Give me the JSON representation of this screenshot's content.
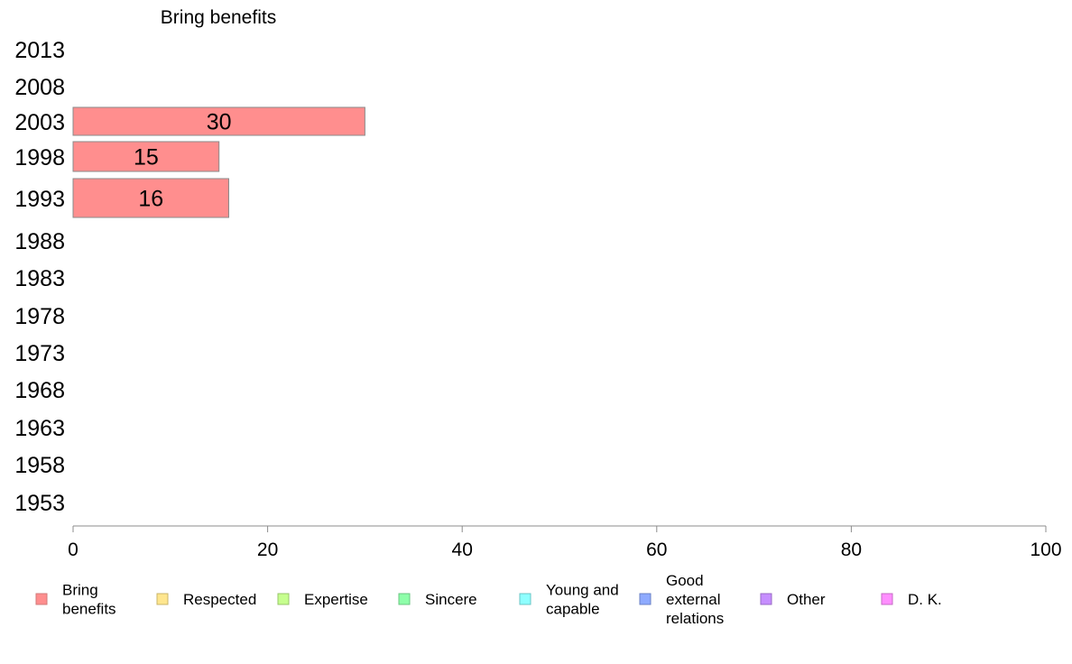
{
  "chart_data": {
    "type": "bar",
    "orientation": "horizontal",
    "title": "Bring benefits",
    "categories": [
      "2013",
      "2008",
      "2003",
      "1998",
      "1993",
      "1988",
      "1983",
      "1978",
      "1973",
      "1968",
      "1963",
      "1958",
      "1953"
    ],
    "series": [
      {
        "name": "Bring benefits",
        "color": "#ff8e8e",
        "values": [
          null,
          null,
          30,
          15,
          16,
          null,
          null,
          null,
          null,
          null,
          null,
          null,
          null
        ]
      }
    ],
    "x_ticks": [
      "0",
      "20",
      "40",
      "60",
      "80",
      "100"
    ],
    "xlim": [
      0,
      100
    ],
    "grid": false,
    "legend_position": "bottom",
    "legend": [
      {
        "label": "Bring\nbenefits",
        "color": "#ff8e8e",
        "stroke": "#d27a7a"
      },
      {
        "label": "Respected",
        "color": "#ffe68e",
        "stroke": "#c9b46a"
      },
      {
        "label": "Expertise",
        "color": "#c6ff8e",
        "stroke": "#98c46b"
      },
      {
        "label": "Sincere",
        "color": "#8effa9",
        "stroke": "#6bc482"
      },
      {
        "label": "Young and\ncapable",
        "color": "#8effff",
        "stroke": "#6bc4c4"
      },
      {
        "label": "Good\nexternal\nrelations",
        "color": "#8eaaff",
        "stroke": "#6b82c4"
      },
      {
        "label": "Other",
        "color": "#c68eff",
        "stroke": "#986bc4"
      },
      {
        "label": "D. K.",
        "color": "#ff8eff",
        "stroke": "#c46bc4"
      }
    ]
  }
}
